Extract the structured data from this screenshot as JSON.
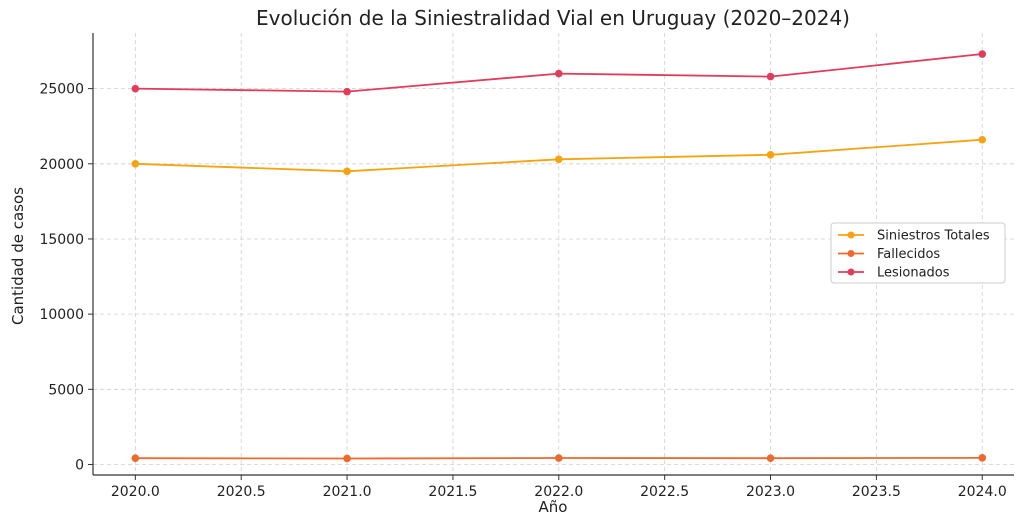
{
  "chart_data": {
    "type": "line",
    "title": "Evolución de la Siniestralidad Vial en Uruguay (2020–2024)",
    "xlabel": "Año",
    "ylabel": "Cantidad de casos",
    "x": [
      2020,
      2021,
      2022,
      2023,
      2024
    ],
    "xlim": [
      2019.8,
      2024.15
    ],
    "ylim": [
      -700,
      28700
    ],
    "xticks": [
      "2020.0",
      "2020.5",
      "2021.0",
      "2021.5",
      "2022.0",
      "2022.5",
      "2023.0",
      "2023.5",
      "2024.0"
    ],
    "yticks": [
      "0",
      "5000",
      "10000",
      "15000",
      "20000",
      "25000"
    ],
    "grid": true,
    "legend_position": "right",
    "series": [
      {
        "name": "Siniestros Totales",
        "color": "#f5a30f",
        "values": [
          20000,
          19500,
          20300,
          20600,
          21600
        ]
      },
      {
        "name": "Fallecidos",
        "color": "#ec6a2d",
        "values": [
          420,
          400,
          430,
          420,
          440
        ]
      },
      {
        "name": "Lesionados",
        "color": "#e23c5c",
        "values": [
          25000,
          24800,
          26000,
          25800,
          27300
        ]
      }
    ]
  }
}
